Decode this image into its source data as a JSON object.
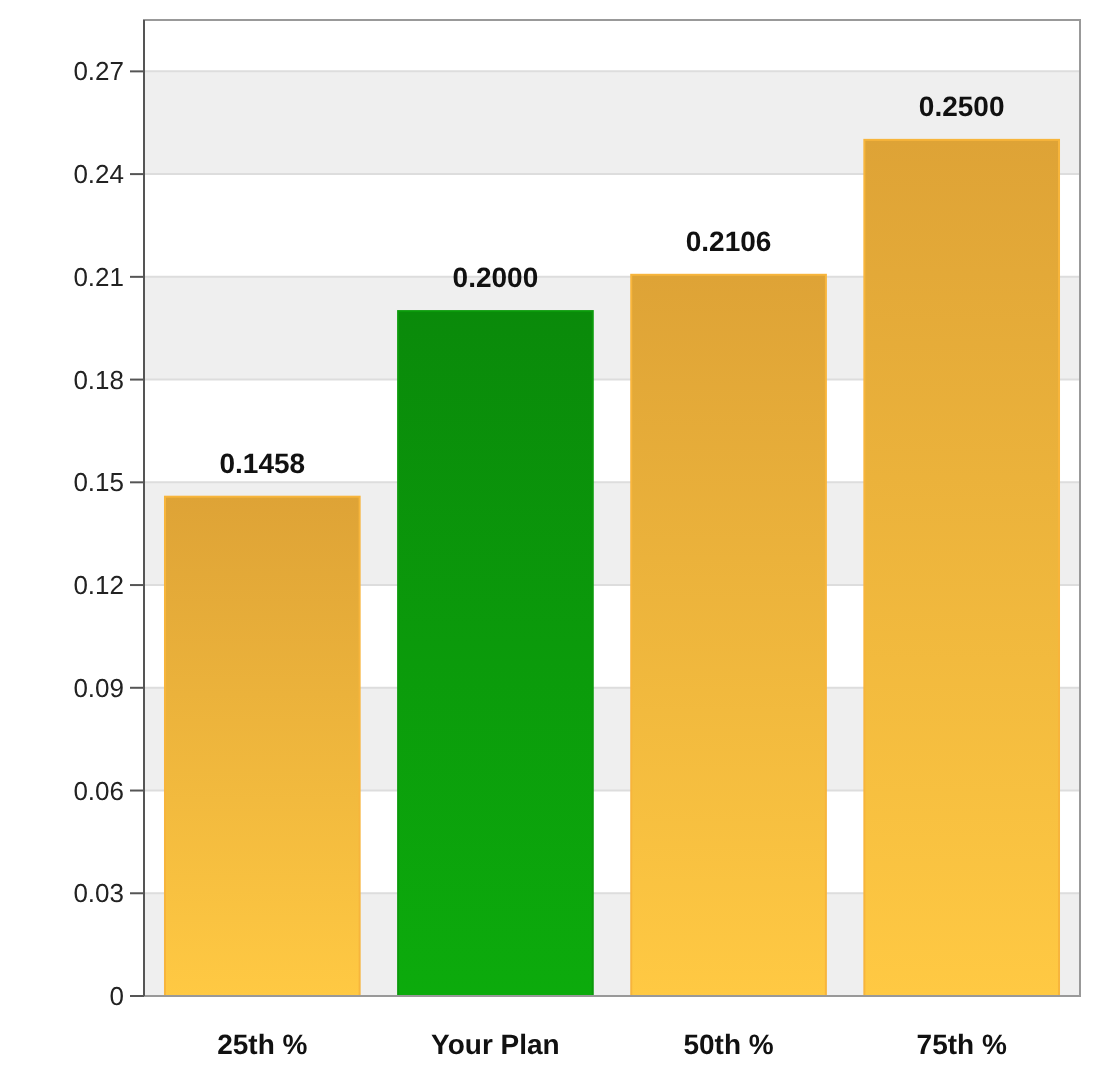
{
  "chart_data": {
    "type": "bar",
    "categories": [
      "25th %",
      "Your Plan",
      "50th %",
      "75th %"
    ],
    "values": [
      0.1458,
      0.2,
      0.2106,
      0.25
    ],
    "colors": [
      "#f7b53c",
      "#0b9a0b",
      "#f7b53c",
      "#f7b53c"
    ],
    "value_labels": [
      "0.1458",
      "0.2000",
      "0.2106",
      "0.2500"
    ],
    "ylim": [
      0,
      0.285
    ],
    "yticks": [
      {
        "value": 0,
        "label": "0"
      },
      {
        "value": 0.03,
        "label": "0.03"
      },
      {
        "value": 0.06,
        "label": "0.06"
      },
      {
        "value": 0.09,
        "label": "0.09"
      },
      {
        "value": 0.12,
        "label": "0.12"
      },
      {
        "value": 0.15,
        "label": "0.15"
      },
      {
        "value": 0.18,
        "label": "0.18"
      },
      {
        "value": 0.21,
        "label": "0.21"
      },
      {
        "value": 0.24,
        "label": "0.24"
      },
      {
        "value": 0.27,
        "label": "0.27"
      }
    ],
    "grid": "y"
  }
}
